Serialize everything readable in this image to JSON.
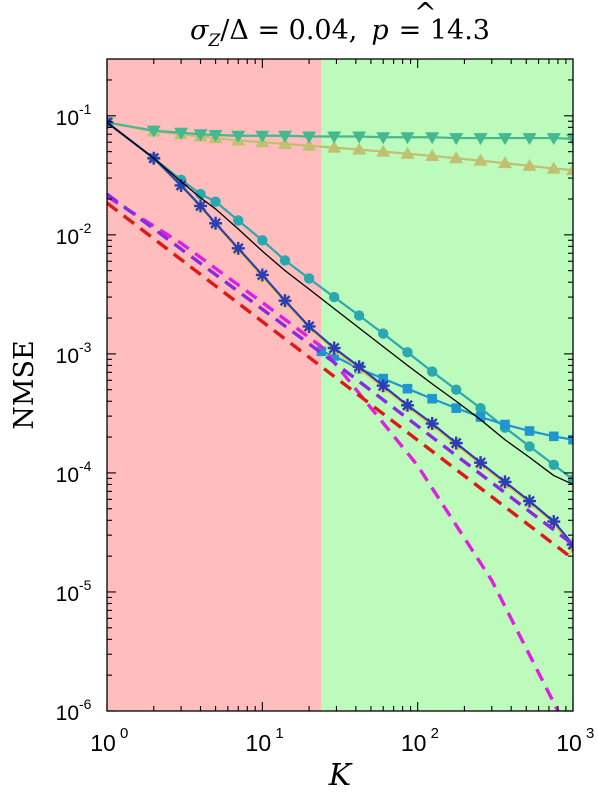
{
  "chart_data": {
    "type": "line",
    "title": "σZ/Δ = 0.04,  p̂ = 14.3",
    "title_parts": {
      "sigma": "σ",
      "sub": "Z",
      "rest": "/Δ = 0.04,",
      "phat": "p",
      "hat": "^",
      "after": "= 14.3"
    },
    "xlabel": "K",
    "ylabel": "NMSE",
    "xscale": "log",
    "yscale": "log",
    "xlim": [
      1,
      1000
    ],
    "ylim": [
      1e-06,
      0.3
    ],
    "grid": false,
    "regions": [
      {
        "from": 1,
        "to": 24,
        "color": "#ffbdbd"
      },
      {
        "from": 24,
        "to": 1000,
        "color": "#bdfbbd"
      }
    ],
    "xticks": [
      {
        "value": 1,
        "base": "10",
        "exp": "0"
      },
      {
        "value": 10,
        "base": "10",
        "exp": "1"
      },
      {
        "value": 100,
        "base": "10",
        "exp": "2"
      },
      {
        "value": 1000,
        "base": "10",
        "exp": "3"
      }
    ],
    "yticks": [
      {
        "value": 1e-06,
        "base": "10",
        "exp": "-6"
      },
      {
        "value": 1e-05,
        "base": "10",
        "exp": "-5"
      },
      {
        "value": 0.0001,
        "base": "10",
        "exp": "-4"
      },
      {
        "value": 0.001,
        "base": "10",
        "exp": "-3"
      },
      {
        "value": 0.01,
        "base": "10",
        "exp": "-2"
      },
      {
        "value": 0.1,
        "base": "10",
        "exp": "-1"
      }
    ],
    "series": [
      {
        "color": "#c0c070",
        "marker": "triangle-up",
        "style": "solid",
        "x": [
          1,
          2,
          3,
          4,
          5,
          7,
          10,
          14,
          20,
          29,
          42,
          60,
          86,
          124,
          177,
          254,
          365,
          525,
          752,
          1000
        ],
        "y": [
          0.088,
          0.074,
          0.07,
          0.067,
          0.065,
          0.062,
          0.06,
          0.058,
          0.056,
          0.054,
          0.052,
          0.05,
          0.048,
          0.046,
          0.044,
          0.042,
          0.04,
          0.038,
          0.036,
          0.035
        ]
      },
      {
        "color": "#44b88e",
        "marker": "triangle-down",
        "style": "solid",
        "x": [
          1,
          2,
          3,
          4,
          5,
          7,
          10,
          14,
          20,
          29,
          42,
          60,
          86,
          124,
          177,
          254,
          365,
          525,
          752,
          1000
        ],
        "y": [
          0.088,
          0.075,
          0.072,
          0.07,
          0.069,
          0.068,
          0.068,
          0.068,
          0.067,
          0.067,
          0.067,
          0.066,
          0.066,
          0.066,
          0.065,
          0.065,
          0.065,
          0.065,
          0.065,
          0.064
        ]
      },
      {
        "color": "#2aa8b0",
        "marker": "circle",
        "style": "solid",
        "x": [
          1,
          2,
          3,
          4,
          5,
          7,
          10,
          14,
          20,
          29,
          42,
          60,
          86,
          124,
          177,
          254,
          365,
          525,
          752,
          1000
        ],
        "y": [
          0.088,
          0.044,
          0.029,
          0.022,
          0.019,
          0.0132,
          0.009,
          0.0061,
          0.0043,
          0.003,
          0.0021,
          0.00148,
          0.00103,
          0.00071,
          0.0005,
          0.00035,
          0.00024,
          0.000167,
          0.000117,
          8.8e-05
        ]
      },
      {
        "color": "#1e96d2",
        "marker": "square",
        "style": "solid",
        "x": [
          24,
          29,
          42,
          60,
          86,
          124,
          177,
          254,
          365,
          525,
          752,
          1000
        ],
        "y": [
          0.00105,
          0.00096,
          0.00075,
          0.00062,
          0.00051,
          0.00042,
          0.00035,
          0.000295,
          0.000255,
          0.000225,
          0.000203,
          0.00019
        ]
      },
      {
        "color": "#f2c84e",
        "marker": "star",
        "style": "solid",
        "x": [
          1,
          2,
          3,
          4,
          5,
          7,
          10,
          14,
          20,
          29,
          42,
          60,
          86,
          124,
          177,
          254,
          365,
          525,
          752,
          1000
        ],
        "y": [
          0.088,
          0.044,
          0.0255,
          0.017,
          0.0122,
          0.0074,
          0.0044,
          0.0027,
          0.00165,
          0.00108,
          0.00075,
          0.00052,
          0.00036,
          0.00025,
          0.000172,
          0.000118,
          8.1e-05,
          5.6e-05,
          3.8e-05,
          2.3e-05
        ]
      },
      {
        "color": "#2b3fb5",
        "marker": "asterisk",
        "style": "solid",
        "x": [
          1,
          2,
          3,
          4,
          5,
          7,
          10,
          14,
          20,
          29,
          42,
          60,
          86,
          124,
          177,
          254,
          365,
          525,
          752,
          1000
        ],
        "y": [
          0.088,
          0.044,
          0.026,
          0.0175,
          0.0125,
          0.0077,
          0.0046,
          0.0028,
          0.0017,
          0.00112,
          0.00078,
          0.00054,
          0.00037,
          0.00026,
          0.000178,
          0.000122,
          8.4e-05,
          5.8e-05,
          3.9e-05,
          2.5e-05
        ]
      },
      {
        "color": "#000000",
        "marker": "none",
        "style": "solid",
        "x": [
          1,
          2,
          3,
          4,
          5,
          7,
          10,
          14,
          20,
          29,
          42,
          60,
          86,
          124,
          177,
          254,
          365,
          525,
          752,
          1000
        ],
        "y": [
          0.088,
          0.044,
          0.028,
          0.0205,
          0.0165,
          0.0112,
          0.0073,
          0.005,
          0.0035,
          0.0024,
          0.00165,
          0.00115,
          0.0008,
          0.00056,
          0.0004,
          0.00028,
          0.00019,
          0.000135,
          9.5e-05,
          8e-05
        ]
      },
      {
        "color": "#e020e0",
        "marker": "none",
        "style": "dashed",
        "x": [
          1,
          3,
          10,
          24,
          100,
          300,
          800
        ],
        "y": [
          0.021,
          0.0085,
          0.0027,
          0.00115,
          0.000115,
          1.25e-05,
          1e-06
        ]
      },
      {
        "color": "#8a2be2",
        "marker": "none",
        "style": "dashed",
        "x": [
          1,
          30,
          1000
        ],
        "y": [
          0.022,
          0.00082,
          2.5e-05
        ]
      },
      {
        "color": "#e01818",
        "marker": "none",
        "style": "dashed",
        "x": [
          1,
          1000
        ],
        "y": [
          0.0185,
          1.9e-05
        ]
      }
    ]
  }
}
